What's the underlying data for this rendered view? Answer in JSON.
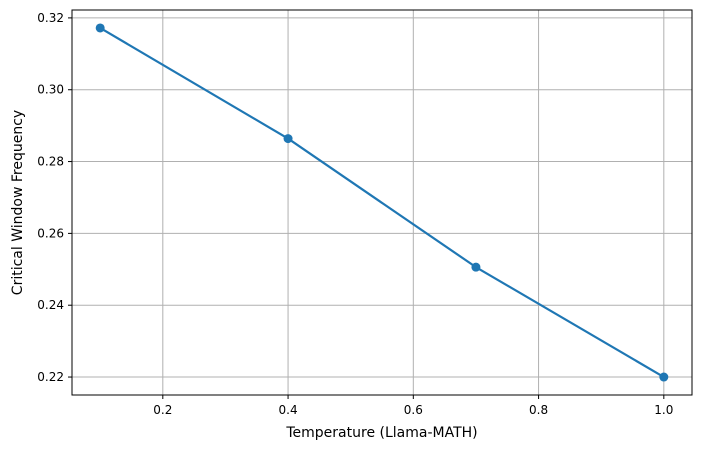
{
  "chart_data": {
    "type": "line",
    "xlabel": "Temperature (Llama-MATH)",
    "ylabel": "Critical Window Frequency",
    "x": [
      0.1,
      0.4,
      0.7,
      1.0
    ],
    "series": [
      {
        "values": [
          0.3172,
          0.2864,
          0.2506,
          0.22
        ]
      }
    ],
    "xlim": [
      0.055,
      1.045
    ],
    "ylim": [
      0.215,
      0.3222
    ],
    "xticks": [
      0.2,
      0.4,
      0.6,
      0.8,
      1.0
    ],
    "xtick_labels": [
      "0.2",
      "0.4",
      "0.6",
      "0.8",
      "1.0"
    ],
    "yticks": [
      0.22,
      0.24,
      0.26,
      0.28,
      0.3,
      0.32
    ],
    "ytick_labels": [
      "0.22",
      "0.24",
      "0.26",
      "0.28",
      "0.30",
      "0.32"
    ],
    "grid": true,
    "line_color": "#1f77b4",
    "marker": "circle"
  }
}
